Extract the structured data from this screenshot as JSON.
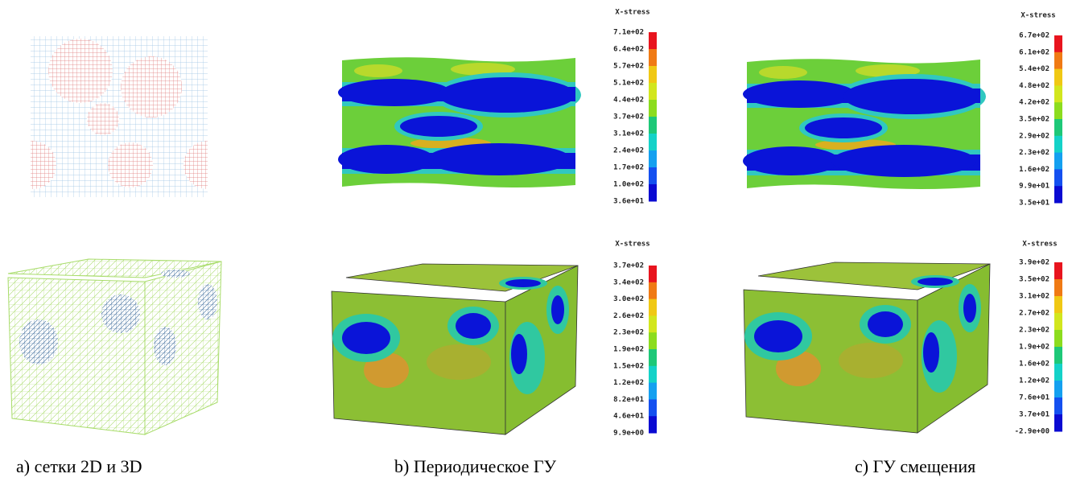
{
  "colorbars": [
    {
      "title": "X-stress",
      "labels": [
        "7.1e+02",
        "6.4e+02",
        "5.7e+02",
        "5.1e+02",
        "4.4e+02",
        "3.7e+02",
        "3.1e+02",
        "2.4e+02",
        "1.7e+02",
        "1.0e+02",
        "3.6e+01"
      ]
    },
    {
      "title": "X-stress",
      "labels": [
        "6.7e+02",
        "6.1e+02",
        "5.4e+02",
        "4.8e+02",
        "4.2e+02",
        "3.5e+02",
        "2.9e+02",
        "2.3e+02",
        "1.6e+02",
        "9.9e+01",
        "3.5e+01"
      ]
    },
    {
      "title": "X-stress",
      "labels": [
        "3.7e+02",
        "3.4e+02",
        "3.0e+02",
        "2.6e+02",
        "2.3e+02",
        "1.9e+02",
        "1.5e+02",
        "1.2e+02",
        "8.2e+01",
        "4.6e+01",
        "9.9e+00"
      ]
    },
    {
      "title": "X-stress",
      "labels": [
        "3.9e+02",
        "3.5e+02",
        "3.1e+02",
        "2.7e+02",
        "2.3e+02",
        "1.9e+02",
        "1.6e+02",
        "1.2e+02",
        "7.6e+01",
        "3.7e+01",
        "-2.9e+00"
      ]
    }
  ],
  "captions": [
    "a) сетки 2D и 3D",
    "b) Периодическое ГУ",
    "c) ГУ смещения"
  ]
}
